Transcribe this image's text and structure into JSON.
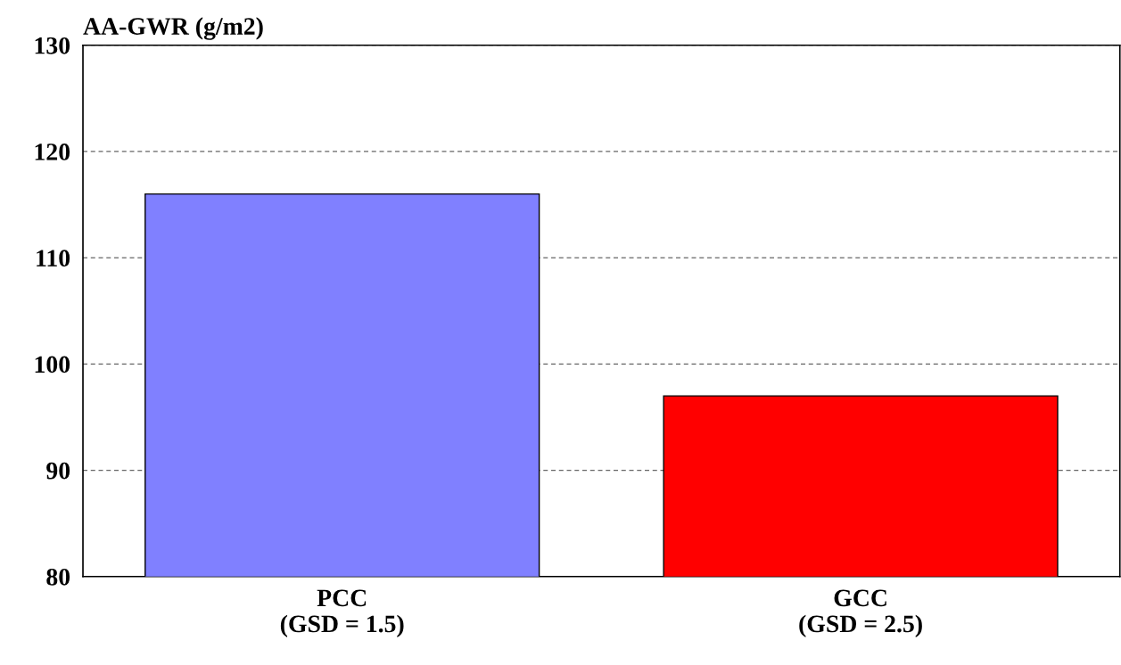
{
  "chart_data": {
    "type": "bar",
    "ylabel": "AA-GWR (g/m2)",
    "categories": [
      "PCC\n(GSD = 1.5)",
      "GCC\n(GSD = 2.5)"
    ],
    "values": [
      116,
      97
    ],
    "colors": [
      "#8080ff",
      "#ff0000"
    ],
    "ylim": [
      80,
      130
    ],
    "yticks": [
      80,
      90,
      100,
      110,
      120,
      130
    ],
    "grid": "y",
    "line_style": "dashed",
    "legend": false
  }
}
